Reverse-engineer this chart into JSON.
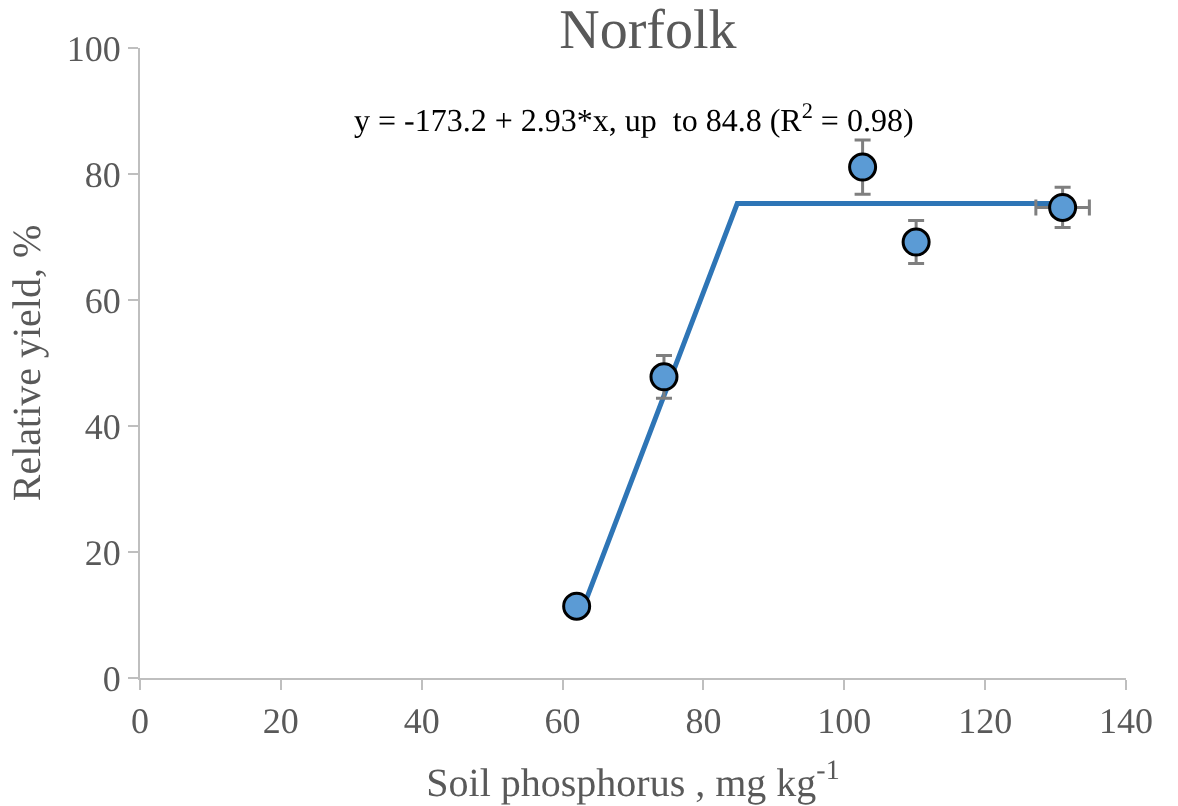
{
  "chart_data": {
    "type": "scatter",
    "title": "Norfolk",
    "xlabel": "Soil phosphorus , mg kg$^{-1}$",
    "ylabel": "Relative yield, %",
    "annotations": [
      "y = -173.2 + 2.93*x, up  to 84.8 (R$^{2}$ = 0.98)"
    ],
    "x": [
      62.0,
      74.4,
      102.6,
      110.2,
      131.0
    ],
    "series": [
      {
        "color": "#5b9bd5",
        "values": [
          11.4,
          47.8,
          81.1,
          69.2,
          74.7
        ],
        "errors": [
          null,
          3.4,
          4.3,
          3.4,
          3.2
        ],
        "xerrors": [
          null,
          null,
          null,
          null,
          3.8
        ],
        "marker": "circle"
      },
      {
        "type": "line",
        "color": "#2e75b6",
        "x": [
          63,
          84.8,
          131
        ],
        "values": [
          11.4,
          75.3,
          75.3
        ],
        "marker": "none",
        "line_style": "solid"
      }
    ],
    "xlim": [
      0,
      140
    ],
    "xticks": [
      0,
      20,
      40,
      60,
      80,
      100,
      120,
      140
    ],
    "ylim": [
      0,
      100
    ],
    "yticks": [
      0,
      20,
      40,
      60,
      80,
      100
    ],
    "grid": false
  }
}
